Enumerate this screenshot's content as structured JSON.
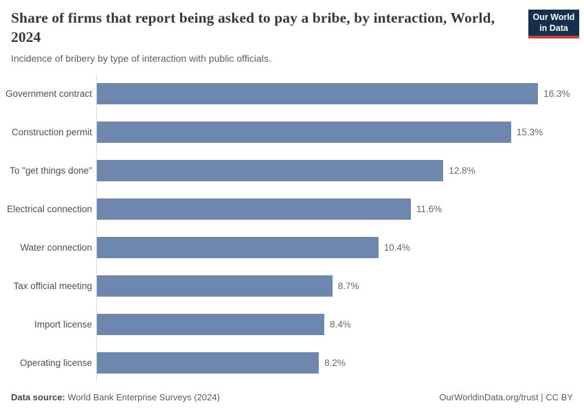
{
  "header": {
    "title": "Share of firms that report being asked to pay a bribe, by interaction, World, 2024",
    "subtitle": "Incidence of bribery by type of interaction with public officials.",
    "logo": {
      "line1": "Our World",
      "line2": "in Data"
    }
  },
  "chart_data": {
    "type": "bar",
    "orientation": "horizontal",
    "title": "Share of firms that report being asked to pay a bribe, by interaction, World, 2024",
    "categories": [
      "Government contract",
      "Construction permit",
      "To \"get things done\"",
      "Electrical connection",
      "Water connection",
      "Tax official meeting",
      "Import license",
      "Operating license"
    ],
    "values": [
      16.3,
      15.3,
      12.8,
      11.6,
      10.4,
      8.7,
      8.4,
      8.2
    ],
    "value_labels": [
      "16.3%",
      "15.3%",
      "12.8%",
      "11.6%",
      "10.4%",
      "8.7%",
      "8.4%",
      "8.2%"
    ],
    "value_suffix": "%",
    "xlabel": "",
    "ylabel": "",
    "xlim": [
      0,
      17.9
    ],
    "grid": false,
    "legend": "none",
    "bar_color": "#6d87af"
  },
  "footer": {
    "source_label": "Data source:",
    "source_value": "World Bank Enterprise Surveys (2024)",
    "credit": "OurWorldinData.org/trust | CC BY"
  },
  "colors": {
    "bar": "#6d87af",
    "axis_line": "#dcdcdc",
    "logo_background": "#13304f",
    "logo_stripe": "#d13b42",
    "title_text": "#373737",
    "label_text": "#4e4e4e",
    "value_text": "#666666"
  }
}
